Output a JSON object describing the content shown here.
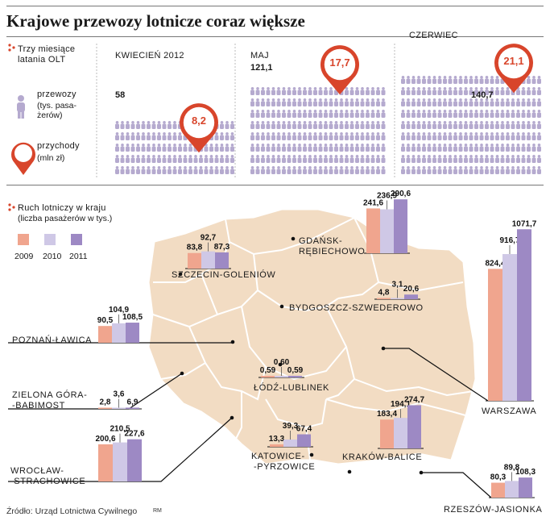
{
  "title": "Krajowe przewozy lotnicze coraz większe",
  "legend_top": {
    "heading": "Trzy miesiące latania OLT",
    "przewozy_label": "przewozy",
    "przewozy_unit": "(tys. pasa-żerów)",
    "przychody_label": "przychody",
    "przychody_unit": "(mln zł)"
  },
  "months": [
    {
      "label": "KWIECIEŃ 2012",
      "passengers": "58",
      "revenue": "8,2"
    },
    {
      "label": "MAJ",
      "passengers": "121,1",
      "revenue": "17,7"
    },
    {
      "label": "CZERWIEC",
      "passengers": "140,7",
      "revenue": "21,1"
    }
  ],
  "legend_bottom": {
    "heading": "Ruch lotniczy w kraju",
    "subheading": "(liczba pasażerów w tys.)",
    "years": [
      "2009",
      "2010",
      "2011"
    ]
  },
  "colors": {
    "y2009": "#f0a58e",
    "y2010": "#cfc8e6",
    "y2011": "#9d89c4",
    "accent": "#d8452b",
    "map": "#f2dcc3"
  },
  "source": "Źródło: Urząd Lotnictwa Cywilnego",
  "credit": "RM",
  "chart_data": [
    {
      "type": "bar",
      "title": "Trzy miesiące latania OLT",
      "categories": [
        "KWIECIEŃ 2012",
        "MAJ",
        "CZERWIEC"
      ],
      "series": [
        {
          "name": "przewozy",
          "values": [
            58,
            121.1,
            140.7
          ]
        },
        {
          "name": "przychody",
          "values": [
            8.2,
            17.7,
            21.1
          ]
        }
      ]
    },
    {
      "type": "bar",
      "title": "Ruch lotniczy w kraju",
      "legend": [
        "2009",
        "2010",
        "2011"
      ],
      "airports": [
        {
          "name": "GDAŃSK-RĘBIECHOWO",
          "values": [
            241.6,
            236.9,
            290.6
          ],
          "labels": [
            "241,6",
            "236,9",
            "290,6"
          ]
        },
        {
          "name": "SZCZECIN-GOLENIÓW",
          "values": [
            83.8,
            92.7,
            87.3
          ],
          "labels": [
            "83,8",
            "92,7",
            "87,3"
          ]
        },
        {
          "name": "WARSZAWA",
          "values": [
            824.4,
            916.7,
            1071.7
          ],
          "labels": [
            "824,4",
            "916,7",
            "1071,7"
          ]
        },
        {
          "name": "BYDGOSZCZ-SZWEDEROWO",
          "values": [
            4.8,
            3.1,
            20.6
          ],
          "labels": [
            "4,8",
            "3,1",
            "20,6"
          ]
        },
        {
          "name": "POZNAŃ-ŁAWICA",
          "values": [
            90.5,
            104.9,
            108.5
          ],
          "labels": [
            "90,5",
            "104,9",
            "108,5"
          ]
        },
        {
          "name": "ŁÓDŹ-LUBLINEK",
          "values": [
            0.59,
            0.6,
            0.59
          ],
          "labels": [
            "0,59",
            "0,60",
            "0,59"
          ]
        },
        {
          "name": "ZIELONA GÓRA-BABIMOST",
          "values": [
            2.8,
            3.6,
            6.9
          ],
          "labels": [
            "2,8",
            "3,6",
            "6,9"
          ]
        },
        {
          "name": "KATOWICE-PYRZOWICE",
          "values": [
            13.3,
            39.3,
            67.4
          ],
          "labels": [
            "13,3",
            "39,3",
            "67,4"
          ]
        },
        {
          "name": "KRAKÓW-BALICE",
          "values": [
            183.4,
            194.1,
            274.7
          ],
          "labels": [
            "183,4",
            "194,1",
            "274,7"
          ]
        },
        {
          "name": "WROCŁAW-STRACHOWICE",
          "values": [
            200.6,
            210.5,
            227.6
          ],
          "labels": [
            "200,6",
            "210,5",
            "227,6"
          ]
        },
        {
          "name": "RZESZÓW-JASIONKA",
          "values": [
            80.3,
            89.8,
            108.3
          ],
          "labels": [
            "80,3",
            "89,8",
            "108,3"
          ]
        }
      ]
    }
  ]
}
